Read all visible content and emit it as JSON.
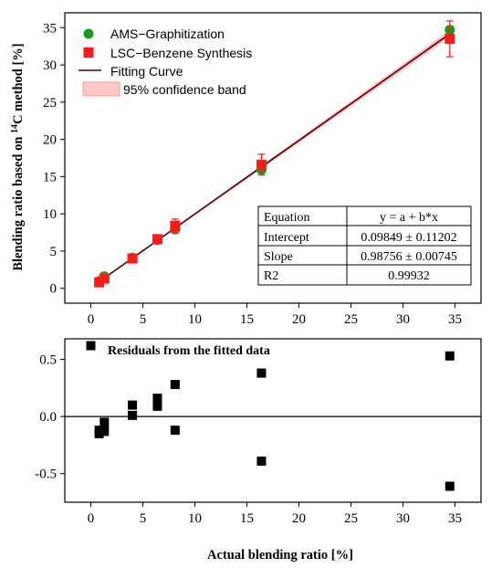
{
  "chart_data": [
    {
      "type": "scatter",
      "ylabel_prefix": "Blending ratio based on ",
      "ylabel_sup": "14",
      "ylabel_suffix": "C method [%]",
      "xlim": [
        -2.5,
        37.5
      ],
      "ylim": [
        -2,
        37
      ],
      "xticks": [
        0,
        5,
        10,
        15,
        20,
        25,
        30,
        35
      ],
      "yticks": [
        0,
        5,
        10,
        15,
        20,
        25,
        30,
        35
      ],
      "legend_position": "top-left",
      "series": [
        {
          "name": "AMS−Graphitization",
          "color": "#1a9a1a",
          "marker": "circle",
          "points": [
            {
              "x": 0.8,
              "y": 0.95,
              "err": 0.15
            },
            {
              "x": 1.3,
              "y": 1.6,
              "err": 0.15
            },
            {
              "x": 4.0,
              "y": 4.1,
              "err": 0.2
            },
            {
              "x": 6.4,
              "y": 6.5,
              "err": 0.3
            },
            {
              "x": 8.1,
              "y": 7.9,
              "err": 0.3
            },
            {
              "x": 16.4,
              "y": 15.9,
              "err": 0.4
            },
            {
              "x": 34.5,
              "y": 34.7,
              "err": 0.5
            }
          ]
        },
        {
          "name": "LSC−Benzene Synthesis",
          "color": "#ff1a1a",
          "marker": "square",
          "points": [
            {
              "x": 0.8,
              "y": 0.8,
              "err": 0.3
            },
            {
              "x": 1.3,
              "y": 1.3,
              "err": 0.3
            },
            {
              "x": 4.0,
              "y": 4.0,
              "err": 0.4
            },
            {
              "x": 6.4,
              "y": 6.6,
              "err": 0.5
            },
            {
              "x": 8.1,
              "y": 8.4,
              "err": 0.9
            },
            {
              "x": 16.4,
              "y": 16.6,
              "err": 1.4
            },
            {
              "x": 34.5,
              "y": 33.5,
              "err": 2.4
            }
          ]
        }
      ],
      "fit": {
        "name": "Fitting Curve",
        "color": "#5a0000",
        "intercept": 0.09849,
        "slope": 0.98756,
        "x_range": [
          0.8,
          34.5
        ]
      },
      "band": {
        "name": "95% confidence band",
        "color": "#ff9a9a",
        "half_width_at_end": 0.45
      },
      "table": {
        "rows": [
          [
            "Equation",
            "y = a + b*x"
          ],
          [
            "Intercept",
            "0.09849 ± 0.11202"
          ],
          [
            "Slope",
            "0.98756 ± 0.00745"
          ],
          [
            "R2",
            "0.99932"
          ]
        ]
      }
    },
    {
      "type": "scatter",
      "xlabel": "Actual blending ratio [%]",
      "xlim": [
        -2.5,
        37.5
      ],
      "ylim": [
        -0.75,
        0.68
      ],
      "xticks": [
        0,
        5,
        10,
        15,
        20,
        25,
        30,
        35
      ],
      "yticks": [
        -0.5,
        0.0,
        0.5
      ],
      "ytick_labels": [
        "-0.5",
        "0.0",
        "0.5"
      ],
      "zero_line": true,
      "legend_label": "Residuals from the fitted data",
      "legend_marker_point": {
        "x": 0.0,
        "y": 0.62
      },
      "series": [
        {
          "name": "Residuals from the fitted data",
          "color": "#000000",
          "marker": "square",
          "points": [
            {
              "x": 0.8,
              "y": -0.12
            },
            {
              "x": 0.8,
              "y": -0.15
            },
            {
              "x": 1.3,
              "y": -0.05
            },
            {
              "x": 1.3,
              "y": -0.13
            },
            {
              "x": 4.0,
              "y": 0.1
            },
            {
              "x": 4.0,
              "y": 0.01
            },
            {
              "x": 6.4,
              "y": 0.16
            },
            {
              "x": 6.4,
              "y": 0.12
            },
            {
              "x": 6.4,
              "y": 0.09
            },
            {
              "x": 8.1,
              "y": 0.28
            },
            {
              "x": 8.1,
              "y": -0.12
            },
            {
              "x": 16.4,
              "y": 0.38
            },
            {
              "x": 16.4,
              "y": -0.39
            },
            {
              "x": 34.5,
              "y": 0.53
            },
            {
              "x": 34.5,
              "y": -0.61
            }
          ]
        }
      ]
    }
  ]
}
